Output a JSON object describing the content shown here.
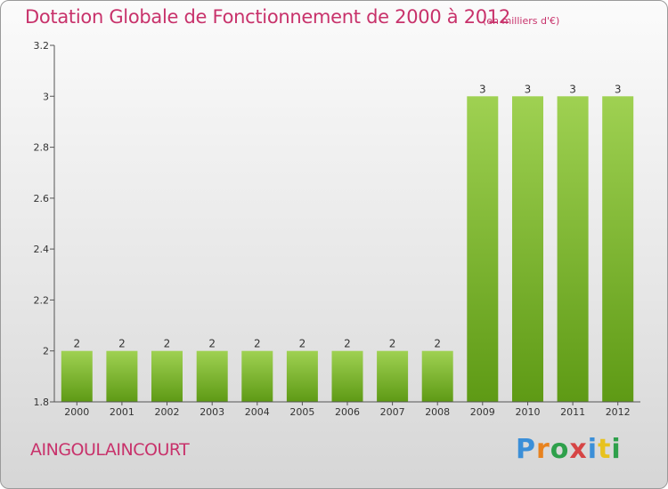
{
  "header": {
    "title": "Dotation Globale de Fonctionnement de 2000 à 2012",
    "unit": "(en milliers d'€)"
  },
  "footer": {
    "commune": "AINGOULAINCOURT",
    "logo": "Proxiti"
  },
  "colors": {
    "accent": "#c8326b",
    "bar_top": "#9fd152",
    "bar_bottom": "#5e9a15",
    "logo_letters": [
      "#3b8fd8",
      "#e8821e",
      "#2ea04b",
      "#d64545",
      "#3b8fd8",
      "#e8c21e",
      "#2ea04b"
    ]
  },
  "chart_data": {
    "type": "bar",
    "title": "Dotation Globale de Fonctionnement de 2000 à 2012",
    "subtitle": "(en milliers d'€)",
    "xlabel": "",
    "ylabel": "",
    "categories": [
      "2000",
      "2001",
      "2002",
      "2003",
      "2004",
      "2005",
      "2006",
      "2007",
      "2008",
      "2009",
      "2010",
      "2011",
      "2012"
    ],
    "values": [
      2,
      2,
      2,
      2,
      2,
      2,
      2,
      2,
      2,
      3,
      3,
      3,
      3
    ],
    "value_labels": [
      "2",
      "2",
      "2",
      "2",
      "2",
      "2",
      "2",
      "2",
      "2",
      "3",
      "3",
      "3",
      "3"
    ],
    "ylim": [
      1.8,
      3.2
    ],
    "yticks": [
      1.8,
      2,
      2.2,
      2.4,
      2.6,
      2.8,
      3,
      3.2
    ],
    "ytick_labels": [
      "1.8",
      "2",
      "2.2",
      "2.4",
      "2.6",
      "2.8",
      "3",
      "3.2"
    ],
    "grid": false,
    "legend": "none"
  }
}
